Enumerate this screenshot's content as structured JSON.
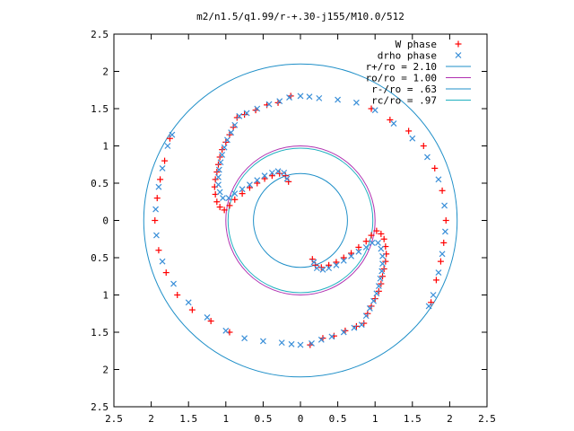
{
  "chart_data": {
    "type": "scatter",
    "title": "m2/n1.5/q1.99/r-+.30-j155/M10.0/512",
    "xlabel": "",
    "ylabel": "",
    "xlim": [
      -2.5,
      2.5
    ],
    "ylim": [
      -2.5,
      2.5
    ],
    "x_tick_values": [
      -2.5,
      -2,
      -1.5,
      -1,
      -0.5,
      0,
      0.5,
      1,
      1.5,
      2,
      2.5
    ],
    "x_tick_labels": [
      "2.5",
      "2",
      "1.5",
      "1",
      "0.5",
      "0",
      "0.5",
      "1",
      "1.5",
      "2",
      "2.5"
    ],
    "y_tick_values": [
      2.5,
      2,
      1.5,
      1,
      0.5,
      0,
      -0.5,
      -1,
      -1.5,
      -2,
      -2.5
    ],
    "y_tick_labels": [
      "2.5",
      "2",
      "1.5",
      "1",
      "0.5",
      "0",
      "0.5",
      "1",
      "1.5",
      "2",
      "2.5"
    ],
    "grid": false,
    "legend_position": "top-right",
    "legend": [
      {
        "label": "W phase",
        "kind": "marker-plus",
        "color": "#ff0000"
      },
      {
        "label": "drho phase",
        "kind": "marker-cross",
        "color": "#3a8fd8"
      },
      {
        "label": "r+/ro = 2.10",
        "kind": "line",
        "color": "#1f8fc8"
      },
      {
        "label": "ro/ro = 1.00",
        "kind": "line",
        "color": "#b030b0"
      },
      {
        "label": "r-/ro = .63",
        "kind": "line",
        "color": "#1f8fc8"
      },
      {
        "label": "rc/ro = .97",
        "kind": "line",
        "color": "#20b0c0"
      }
    ],
    "circles": [
      {
        "name": "r+/ro",
        "radius": 2.1,
        "color": "#1f8fc8"
      },
      {
        "name": "ro/ro",
        "radius": 1.0,
        "color": "#b030b0"
      },
      {
        "name": "r-/ro",
        "radius": 0.63,
        "color": "#1f8fc8"
      },
      {
        "name": "rc/ro",
        "radius": 0.97,
        "color": "#20b0c0"
      }
    ],
    "series": [
      {
        "name": "W phase",
        "marker": "plus",
        "color": "#ff0000",
        "points": [
          [
            -0.13,
            1.67
          ],
          [
            -0.3,
            1.58
          ],
          [
            -0.45,
            1.55
          ],
          [
            -0.6,
            1.48
          ],
          [
            -0.75,
            1.42
          ],
          [
            -0.85,
            1.38
          ],
          [
            -0.9,
            1.25
          ],
          [
            -0.95,
            1.15
          ],
          [
            -1.0,
            1.05
          ],
          [
            -1.05,
            0.95
          ],
          [
            -1.08,
            0.85
          ],
          [
            -1.1,
            0.75
          ],
          [
            -1.12,
            0.65
          ],
          [
            -1.14,
            0.55
          ],
          [
            -1.15,
            0.45
          ],
          [
            -1.14,
            0.35
          ],
          [
            -1.12,
            0.25
          ],
          [
            -1.08,
            0.18
          ],
          [
            -1.02,
            0.14
          ],
          [
            -0.95,
            0.2
          ],
          [
            -0.88,
            0.28
          ],
          [
            -0.78,
            0.36
          ],
          [
            -0.68,
            0.44
          ],
          [
            -0.58,
            0.5
          ],
          [
            -0.48,
            0.56
          ],
          [
            -0.38,
            0.6
          ],
          [
            -0.28,
            0.63
          ],
          [
            -0.2,
            0.6
          ],
          [
            -0.16,
            0.52
          ],
          [
            0.13,
            -1.67
          ],
          [
            0.3,
            -1.58
          ],
          [
            0.45,
            -1.55
          ],
          [
            0.6,
            -1.48
          ],
          [
            0.75,
            -1.42
          ],
          [
            0.85,
            -1.38
          ],
          [
            0.9,
            -1.25
          ],
          [
            0.95,
            -1.15
          ],
          [
            1.0,
            -1.05
          ],
          [
            1.05,
            -0.95
          ],
          [
            1.08,
            -0.85
          ],
          [
            1.1,
            -0.75
          ],
          [
            1.12,
            -0.65
          ],
          [
            1.14,
            -0.55
          ],
          [
            1.15,
            -0.45
          ],
          [
            1.14,
            -0.35
          ],
          [
            1.12,
            -0.25
          ],
          [
            1.08,
            -0.18
          ],
          [
            1.02,
            -0.14
          ],
          [
            0.95,
            -0.2
          ],
          [
            0.88,
            -0.28
          ],
          [
            0.78,
            -0.36
          ],
          [
            0.68,
            -0.44
          ],
          [
            0.58,
            -0.5
          ],
          [
            0.48,
            -0.56
          ],
          [
            0.38,
            -0.6
          ],
          [
            0.28,
            -0.63
          ],
          [
            0.2,
            -0.6
          ],
          [
            0.16,
            -0.52
          ],
          [
            0.95,
            1.5
          ],
          [
            1.2,
            1.35
          ],
          [
            1.45,
            1.2
          ],
          [
            1.65,
            1.0
          ],
          [
            1.8,
            0.7
          ],
          [
            1.9,
            0.4
          ],
          [
            1.95,
            0.0
          ],
          [
            1.92,
            -0.3
          ],
          [
            1.88,
            -0.55
          ],
          [
            1.82,
            -0.8
          ],
          [
            1.75,
            -1.1
          ],
          [
            -0.95,
            -1.5
          ],
          [
            -1.2,
            -1.35
          ],
          [
            -1.45,
            -1.2
          ],
          [
            -1.65,
            -1.0
          ],
          [
            -1.8,
            -0.7
          ],
          [
            -1.9,
            -0.4
          ],
          [
            -1.95,
            0.0
          ],
          [
            -1.92,
            0.3
          ],
          [
            -1.88,
            0.55
          ],
          [
            -1.82,
            0.8
          ],
          [
            -1.75,
            1.1
          ]
        ]
      },
      {
        "name": "drho phase",
        "marker": "cross",
        "color": "#3a8fd8",
        "points": [
          [
            -0.15,
            1.65
          ],
          [
            -0.28,
            1.6
          ],
          [
            -0.42,
            1.56
          ],
          [
            -0.58,
            1.5
          ],
          [
            -0.72,
            1.44
          ],
          [
            -0.82,
            1.4
          ],
          [
            -0.88,
            1.28
          ],
          [
            -0.93,
            1.18
          ],
          [
            -0.98,
            1.08
          ],
          [
            -1.02,
            0.98
          ],
          [
            -1.05,
            0.88
          ],
          [
            -1.07,
            0.78
          ],
          [
            -1.09,
            0.68
          ],
          [
            -1.1,
            0.58
          ],
          [
            -1.1,
            0.48
          ],
          [
            -1.08,
            0.38
          ],
          [
            -1.04,
            0.3
          ],
          [
            -0.96,
            0.3
          ],
          [
            -0.88,
            0.36
          ],
          [
            -0.78,
            0.42
          ],
          [
            -0.68,
            0.48
          ],
          [
            -0.58,
            0.54
          ],
          [
            -0.48,
            0.6
          ],
          [
            -0.38,
            0.64
          ],
          [
            -0.3,
            0.66
          ],
          [
            -0.22,
            0.64
          ],
          [
            -0.18,
            0.56
          ],
          [
            0.15,
            -1.65
          ],
          [
            0.28,
            -1.6
          ],
          [
            0.42,
            -1.56
          ],
          [
            0.58,
            -1.5
          ],
          [
            0.72,
            -1.44
          ],
          [
            0.82,
            -1.4
          ],
          [
            0.88,
            -1.28
          ],
          [
            0.93,
            -1.18
          ],
          [
            0.98,
            -1.08
          ],
          [
            1.02,
            -0.98
          ],
          [
            1.05,
            -0.88
          ],
          [
            1.07,
            -0.78
          ],
          [
            1.09,
            -0.68
          ],
          [
            1.1,
            -0.58
          ],
          [
            1.1,
            -0.48
          ],
          [
            1.08,
            -0.38
          ],
          [
            1.04,
            -0.3
          ],
          [
            0.96,
            -0.3
          ],
          [
            0.88,
            -0.36
          ],
          [
            0.78,
            -0.42
          ],
          [
            0.68,
            -0.48
          ],
          [
            0.58,
            -0.54
          ],
          [
            0.48,
            -0.6
          ],
          [
            0.38,
            -0.64
          ],
          [
            0.3,
            -0.66
          ],
          [
            0.22,
            -0.64
          ],
          [
            0.18,
            -0.56
          ],
          [
            0.0,
            1.67
          ],
          [
            0.12,
            1.66
          ],
          [
            0.25,
            1.64
          ],
          [
            0.5,
            1.62
          ],
          [
            0.75,
            1.58
          ],
          [
            1.0,
            1.48
          ],
          [
            1.25,
            1.3
          ],
          [
            1.5,
            1.1
          ],
          [
            1.7,
            0.85
          ],
          [
            1.85,
            0.55
          ],
          [
            1.93,
            0.2
          ],
          [
            1.94,
            -0.15
          ],
          [
            1.9,
            -0.45
          ],
          [
            1.85,
            -0.7
          ],
          [
            1.78,
            -1.0
          ],
          [
            1.72,
            -1.15
          ],
          [
            0.0,
            -1.67
          ],
          [
            -0.12,
            -1.66
          ],
          [
            -0.25,
            -1.64
          ],
          [
            -0.5,
            -1.62
          ],
          [
            -0.75,
            -1.58
          ],
          [
            -1.0,
            -1.48
          ],
          [
            -1.25,
            -1.3
          ],
          [
            -1.5,
            -1.1
          ],
          [
            -1.7,
            -0.85
          ],
          [
            -1.85,
            -0.55
          ],
          [
            -1.93,
            -0.2
          ],
          [
            -1.94,
            0.15
          ],
          [
            -1.9,
            0.45
          ],
          [
            -1.85,
            0.7
          ],
          [
            -1.78,
            1.0
          ],
          [
            -1.72,
            1.15
          ]
        ]
      }
    ]
  }
}
